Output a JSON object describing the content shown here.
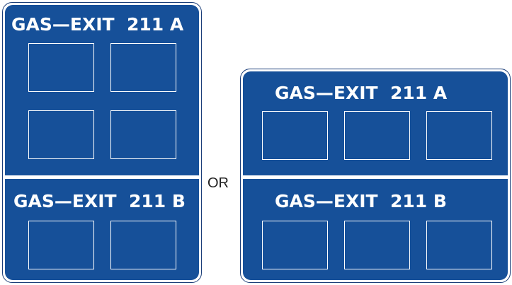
{
  "colors": {
    "sign_blue": "#165099",
    "legend": "#ffffff",
    "border": "#1a3d78"
  },
  "left_sign": {
    "top_legend": "GAS—EXIT  211 A",
    "bottom_legend": "GAS—EXIT  211 B"
  },
  "separator": "OR",
  "right_sign": {
    "top_legend": "GAS—EXIT  211 A",
    "bottom_legend": "GAS—EXIT  211 B"
  }
}
